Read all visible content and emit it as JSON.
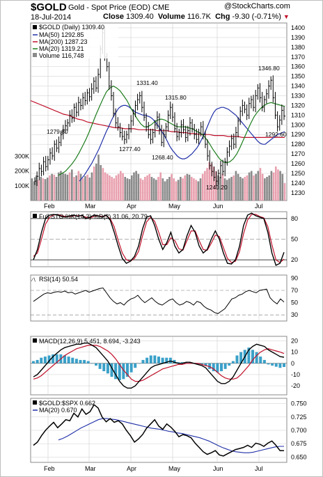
{
  "header": {
    "symbol": "$GOLD",
    "description": "Gold - Spot Price (EOD)",
    "exchange": "CME",
    "date": "18-Jul-2014",
    "close_label": "Close",
    "close_value": "1309.40",
    "volume_label": "Volume",
    "volume_value": "116.7K",
    "chg_label": "Chg",
    "chg_value": "-9.30 (-0.71%)",
    "brand_text": "StockCharts.com"
  },
  "colors": {
    "price_black": "#000000",
    "ma50_blue": "#1f2fa8",
    "ma200_red": "#c0102a",
    "ma20_green": "#1c7d1c",
    "volume_down": "#e9a0ae",
    "volume_up": "#8a8a8a",
    "macd_hist": "#3aa0c8",
    "grid": "#cccccc"
  },
  "chart_data": [
    {
      "type": "line",
      "title": "$GOLD (Daily) 1309.40",
      "legend": [
        {
          "name": "MA(50) 1292.85",
          "color": "#1f2fa8"
        },
        {
          "name": "MA(200) 1287.23",
          "color": "#c0102a"
        },
        {
          "name": "MA(20) 1319.21",
          "color": "#1c7d1c"
        },
        {
          "name": "Volume 116,748",
          "color": "#8a8a8a"
        }
      ],
      "ylim": [
        1222,
        1405
      ],
      "y_ticks": [
        1230,
        1240,
        1250,
        1260,
        1270,
        1280,
        1290,
        1300,
        1310,
        1320,
        1330,
        1340,
        1350,
        1360,
        1370,
        1380,
        1390,
        1400
      ],
      "volume_ticks": [
        "100K",
        "200K",
        "300K"
      ],
      "x_months": [
        "Feb",
        "Mar",
        "Apr",
        "May",
        "Jun",
        "Jul"
      ],
      "annotations": [
        "1279.80",
        "1331.40",
        "1315.80",
        "1346.80",
        "1277.40",
        "1268.40",
        "1240.20",
        "1292.60"
      ],
      "price": [
        1242,
        1247,
        1255,
        1252,
        1262,
        1257,
        1264,
        1271,
        1268,
        1280,
        1276,
        1282,
        1290,
        1295,
        1299,
        1302,
        1310,
        1307,
        1318,
        1313,
        1323,
        1320,
        1328,
        1325,
        1333,
        1329,
        1337,
        1345,
        1338,
        1352,
        1378,
        1395,
        1370,
        1360,
        1340,
        1330,
        1312,
        1302,
        1298,
        1292,
        1288,
        1285,
        1290,
        1296,
        1304,
        1312,
        1320,
        1326,
        1330,
        1318,
        1308,
        1298,
        1290,
        1285,
        1292,
        1300,
        1308,
        1295,
        1282,
        1290,
        1298,
        1310,
        1318,
        1308,
        1296,
        1288,
        1292,
        1300,
        1295,
        1287,
        1294,
        1302,
        1296,
        1290,
        1285,
        1292,
        1298,
        1290,
        1280,
        1268,
        1258,
        1252,
        1246,
        1242,
        1250,
        1258,
        1252,
        1262,
        1272,
        1278,
        1286,
        1280,
        1292,
        1304,
        1314,
        1320,
        1316,
        1310,
        1322,
        1326,
        1318,
        1330,
        1338,
        1328,
        1318,
        1326,
        1332,
        1340,
        1346,
        1328,
        1310,
        1298,
        1305,
        1315,
        1309
      ],
      "ma50": [
        1242,
        1245,
        1248,
        1252,
        1256,
        1260,
        1265,
        1270,
        1275,
        1281,
        1287,
        1293,
        1298,
        1304,
        1309,
        1313,
        1317,
        1319,
        1320,
        1320,
        1319,
        1317,
        1315,
        1313,
        1312,
        1311,
        1310,
        1310,
        1309,
        1308,
        1306,
        1303,
        1300,
        1296,
        1292,
        1288,
        1283,
        1278,
        1274,
        1271,
        1268,
        1266,
        1265,
        1265,
        1266,
        1268,
        1270,
        1273,
        1276,
        1280,
        1285,
        1290,
        1296,
        1302,
        1308,
        1313,
        1316,
        1317,
        1318,
        1318,
        1317,
        1316,
        1314,
        1312,
        1310,
        1307,
        1304,
        1301,
        1298,
        1295,
        1292,
        1289,
        1286,
        1283,
        1281,
        1280,
        1280,
        1282,
        1284,
        1286,
        1288,
        1290,
        1291,
        1292,
        1293
      ],
      "ma200": [
        1325,
        1323,
        1321,
        1319,
        1317,
        1315,
        1313,
        1311,
        1310,
        1308,
        1306,
        1305,
        1303,
        1302,
        1301,
        1300,
        1299,
        1298,
        1297,
        1297,
        1296,
        1296,
        1296,
        1295,
        1295,
        1295,
        1295,
        1294,
        1294,
        1294,
        1293,
        1293,
        1292,
        1292,
        1291,
        1291,
        1290,
        1290,
        1290,
        1289,
        1289,
        1289,
        1288,
        1288,
        1288,
        1287,
        1287,
        1287,
        1287,
        1287,
        1287,
        1287,
        1287,
        1287,
        1287
      ],
      "ma20": [
        1248,
        1250,
        1252,
        1256,
        1260,
        1265,
        1271,
        1278,
        1285,
        1293,
        1302,
        1311,
        1319,
        1327,
        1334,
        1338,
        1340,
        1338,
        1335,
        1330,
        1325,
        1318,
        1312,
        1306,
        1301,
        1298,
        1298,
        1300,
        1303,
        1305,
        1306,
        1305,
        1303,
        1301,
        1299,
        1298,
        1298,
        1298,
        1297,
        1296,
        1294,
        1292,
        1290,
        1286,
        1281,
        1275,
        1270,
        1265,
        1262,
        1261,
        1262,
        1265,
        1270,
        1277,
        1285,
        1293,
        1301,
        1308,
        1313,
        1317,
        1320,
        1322,
        1323,
        1322,
        1321,
        1320,
        1319
      ],
      "volume_k": [
        150,
        130,
        170,
        140,
        160,
        150,
        145,
        155,
        170,
        180,
        175,
        160,
        190,
        200,
        185,
        180,
        175,
        190,
        210,
        160,
        170,
        200,
        180,
        150,
        165,
        175,
        155,
        190,
        230,
        250,
        310,
        240,
        220,
        190,
        180,
        170,
        160,
        150,
        170,
        180,
        200,
        185,
        160,
        150,
        145,
        170,
        190,
        200,
        180,
        150,
        140,
        160,
        170,
        180,
        160,
        150,
        140,
        160,
        190,
        150,
        130,
        145,
        160,
        180,
        150,
        130,
        140,
        160,
        150,
        170,
        180,
        175,
        160,
        150,
        140,
        130,
        150,
        180,
        200,
        220,
        260,
        250,
        230,
        200,
        170,
        160,
        180,
        150,
        140,
        150,
        160,
        170,
        200,
        180,
        160,
        150,
        160,
        170,
        190,
        200,
        170,
        180,
        200,
        220,
        180,
        150,
        160,
        170,
        200,
        190,
        230,
        210,
        200,
        180,
        117
      ]
    },
    {
      "type": "line",
      "title": "Full STO %K(14,3) %D(3) 31.06, 20.79",
      "ylim": [
        10,
        90
      ],
      "y_ticks": [
        20,
        50,
        80
      ],
      "k_line": [
        20,
        35,
        60,
        80,
        85,
        86,
        85,
        83,
        82,
        84,
        85,
        83,
        85,
        80,
        82,
        85,
        84,
        82,
        85,
        78,
        60,
        40,
        22,
        15,
        18,
        25,
        40,
        65,
        82,
        84,
        70,
        50,
        35,
        45,
        60,
        40,
        30,
        35,
        55,
        70,
        60,
        40,
        30,
        35,
        50,
        62,
        50,
        30,
        15,
        14,
        20,
        40,
        70,
        85,
        88,
        84,
        82,
        80,
        60,
        30,
        12,
        15,
        31
      ],
      "d_line": [
        25,
        30,
        50,
        72,
        82,
        85,
        86,
        84,
        83,
        83,
        84,
        84,
        84,
        82,
        81,
        83,
        84,
        83,
        84,
        80,
        68,
        48,
        30,
        20,
        18,
        22,
        32,
        55,
        75,
        82,
        76,
        60,
        42,
        42,
        52,
        48,
        36,
        34,
        48,
        62,
        62,
        48,
        35,
        34,
        44,
        56,
        54,
        38,
        22,
        16,
        18,
        32,
        58,
        78,
        86,
        86,
        83,
        81,
        68,
        42,
        20,
        16,
        21
      ]
    },
    {
      "type": "line",
      "title": "RSI(14) 50.54",
      "ylim": [
        20,
        95
      ],
      "y_ticks": [
        30,
        50,
        70,
        90
      ],
      "values": [
        52,
        56,
        60,
        64,
        66,
        65,
        67,
        68,
        67,
        69,
        66,
        67,
        64,
        66,
        68,
        70,
        67,
        69,
        71,
        73,
        74,
        66,
        58,
        52,
        48,
        50,
        46,
        52,
        56,
        58,
        62,
        55,
        50,
        54,
        58,
        52,
        48,
        46,
        50,
        54,
        56,
        50,
        46,
        48,
        52,
        50,
        46,
        52,
        50,
        44,
        40,
        38,
        34,
        32,
        36,
        40,
        48,
        56,
        58,
        62,
        64,
        68,
        70,
        68,
        66,
        70,
        71,
        72,
        58,
        52,
        48,
        56,
        51
      ]
    },
    {
      "type": "bar",
      "title": "MACD(12,26,9) 5.451, 8.694, -3.243",
      "ylim": [
        -28,
        24
      ],
      "y_ticks": [
        -20,
        -10,
        0,
        10,
        20
      ],
      "macd": [
        -12,
        -10,
        -6,
        -2,
        2,
        6,
        9,
        12,
        14,
        15,
        16,
        17,
        17,
        18,
        18,
        16,
        14,
        10,
        6,
        2,
        -4,
        -10,
        -16,
        -20,
        -22,
        -22,
        -20,
        -16,
        -12,
        -8,
        -4,
        -2,
        -1,
        0,
        1,
        2,
        1,
        0,
        0,
        1,
        1,
        0,
        -1,
        -2,
        -4,
        -8,
        -12,
        -16,
        -18,
        -18,
        -16,
        -12,
        -6,
        0,
        6,
        12,
        15,
        17,
        16,
        15,
        12,
        10,
        8,
        6,
        5.45
      ],
      "signal": [
        -14,
        -13,
        -11,
        -8,
        -5,
        -2,
        1,
        4,
        7,
        9,
        11,
        13,
        14,
        15,
        16,
        16,
        16,
        15,
        13,
        11,
        8,
        4,
        -1,
        -6,
        -10,
        -14,
        -16,
        -16,
        -15,
        -13,
        -11,
        -9,
        -7,
        -5,
        -4,
        -3,
        -2,
        -1,
        -1,
        0,
        0,
        0,
        0,
        -1,
        -2,
        -3,
        -5,
        -8,
        -11,
        -13,
        -14,
        -14,
        -13,
        -10,
        -6,
        -2,
        3,
        7,
        10,
        12,
        13,
        12,
        11,
        10,
        8.69
      ],
      "histogram": [
        2,
        3,
        5,
        6,
        7,
        8,
        8,
        8,
        7,
        6,
        5,
        4,
        3,
        3,
        2,
        0,
        -2,
        -5,
        -7,
        -9,
        -12,
        -14,
        -15,
        -14,
        -12,
        -8,
        -4,
        0,
        3,
        5,
        7,
        7,
        6,
        5,
        5,
        5,
        3,
        1,
        1,
        1,
        1,
        0,
        -1,
        -1,
        -2,
        -5,
        -7,
        -8,
        -7,
        -5,
        -2,
        2,
        7,
        10,
        12,
        14,
        12,
        10,
        6,
        3,
        -1,
        -2,
        -3,
        -4,
        -3.24
      ]
    },
    {
      "type": "line",
      "title": "$GOLD:$SPX 0.662",
      "legend": [
        {
          "name": "MA(20) 0.670",
          "color": "#1f2fa8"
        }
      ],
      "ylim": [
        0.64,
        0.76
      ],
      "y_ticks": [
        0.65,
        0.675,
        0.7,
        0.725,
        0.75
      ],
      "y_tick_labels": [
        "0.650",
        "0.675",
        "0.700",
        "0.725",
        "0.750"
      ],
      "ratio": [
        0.672,
        0.678,
        0.69,
        0.7,
        0.708,
        0.715,
        0.705,
        0.712,
        0.72,
        0.718,
        0.732,
        0.725,
        0.74,
        0.73,
        0.735,
        0.748,
        0.742,
        0.725,
        0.716,
        0.722,
        0.715,
        0.718,
        0.712,
        0.7,
        0.69,
        0.678,
        0.684,
        0.692,
        0.704,
        0.712,
        0.72,
        0.708,
        0.702,
        0.712,
        0.706,
        0.698,
        0.688,
        0.692,
        0.69,
        0.686,
        0.676,
        0.668,
        0.66,
        0.655,
        0.658,
        0.662,
        0.654,
        0.652,
        0.656,
        0.66,
        0.664,
        0.666,
        0.668,
        0.672,
        0.668,
        0.676,
        0.674,
        0.67,
        0.676,
        0.68,
        0.672,
        0.662,
        0.662
      ],
      "ma20": [
        0.682,
        0.685,
        0.689,
        0.694,
        0.699,
        0.704,
        0.708,
        0.712,
        0.716,
        0.72,
        0.722,
        0.722,
        0.721,
        0.72,
        0.718,
        0.716,
        0.714,
        0.712,
        0.71,
        0.708,
        0.706,
        0.704,
        0.703,
        0.702,
        0.7,
        0.698,
        0.697,
        0.695,
        0.694,
        0.692,
        0.69,
        0.688,
        0.686,
        0.683,
        0.68,
        0.676,
        0.672,
        0.668,
        0.665,
        0.662,
        0.66,
        0.659,
        0.658,
        0.658,
        0.659,
        0.661,
        0.663,
        0.665,
        0.667,
        0.669,
        0.67,
        0.67
      ]
    }
  ]
}
